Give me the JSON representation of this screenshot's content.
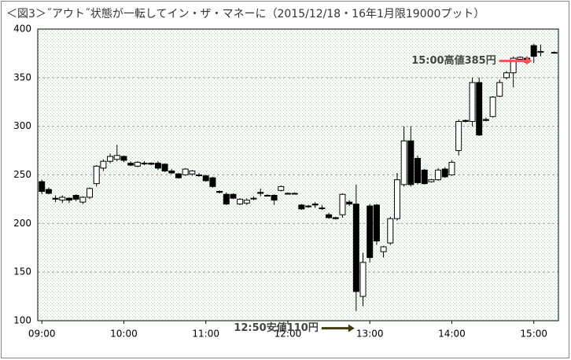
{
  "chart_data": {
    "type": "candlestick",
    "title": "＜図3＞˝アウト˝状態が一転してイン・ザ・マネーに（2015/12/18・16年1月限19000プット）",
    "x": [
      "09:00",
      "09:05",
      "09:10",
      "09:15",
      "09:20",
      "09:25",
      "09:30",
      "09:35",
      "09:40",
      "09:45",
      "09:50",
      "09:55",
      "10:00",
      "10:05",
      "10:10",
      "10:15",
      "10:20",
      "10:25",
      "10:30",
      "10:35",
      "10:40",
      "10:45",
      "10:50",
      "10:55",
      "11:00",
      "11:05",
      "11:10",
      "11:15",
      "11:20",
      "11:25",
      "11:30",
      "11:35",
      "11:40",
      "11:45",
      "11:50",
      "11:55",
      "12:00",
      "12:05",
      "12:10",
      "12:15",
      "12:20",
      "12:25",
      "12:30",
      "12:35",
      "12:40",
      "12:45",
      "12:50",
      "12:55",
      "13:00",
      "13:05",
      "13:10",
      "13:15",
      "13:20",
      "13:25",
      "13:30",
      "13:35",
      "13:40",
      "13:45",
      "13:50",
      "13:55",
      "14:00",
      "14:05",
      "14:10",
      "14:15",
      "14:20",
      "14:25",
      "14:30",
      "14:35",
      "14:40",
      "14:45",
      "14:50",
      "14:55",
      "15:00",
      "15:05",
      "15:15"
    ],
    "open": [
      243,
      235,
      226,
      224,
      226,
      229,
      222,
      227,
      241,
      257,
      264,
      266,
      269,
      262,
      259,
      262,
      262,
      262,
      261,
      254,
      251,
      250,
      251,
      250,
      249,
      247,
      233,
      230,
      230,
      220,
      221,
      226,
      232,
      229,
      229,
      234,
      231,
      231,
      219,
      218,
      220,
      216,
      209,
      206,
      209,
      222,
      220,
      125,
      218,
      219,
      171,
      180,
      205,
      240,
      285,
      267,
      255,
      243,
      245,
      256,
      250,
      275,
      306,
      305,
      345,
      307,
      310,
      331,
      350,
      355,
      369,
      370,
      383,
      376,
      376
    ],
    "high": [
      245,
      237,
      229,
      229,
      227,
      230,
      228,
      237,
      260,
      266,
      272,
      281,
      270,
      264,
      264,
      264,
      263,
      264,
      262,
      256,
      252,
      257,
      255,
      252,
      250,
      248,
      234,
      232,
      231,
      226,
      226,
      228,
      236,
      230,
      230,
      239,
      232,
      232,
      220,
      219,
      222,
      219,
      211,
      207,
      231,
      224,
      240,
      170,
      220,
      220,
      177,
      207,
      252,
      300,
      300,
      270,
      256,
      246,
      257,
      258,
      265,
      307,
      307,
      350,
      350,
      309,
      331,
      348,
      357,
      372,
      372,
      372,
      385,
      384,
      377
    ],
    "low": [
      230,
      230,
      222,
      221,
      221,
      223,
      220,
      225,
      238,
      254,
      262,
      264,
      263,
      259,
      258,
      260,
      260,
      255,
      253,
      251,
      246,
      249,
      249,
      248,
      243,
      237,
      231,
      219,
      225,
      219,
      219,
      224,
      228,
      228,
      219,
      233,
      230,
      230,
      214,
      216,
      216,
      214,
      205,
      204,
      206,
      218,
      110,
      115,
      160,
      178,
      165,
      178,
      203,
      238,
      238,
      240,
      240,
      242,
      244,
      247,
      249,
      270,
      304,
      300,
      290,
      305,
      309,
      330,
      348,
      340,
      368,
      365,
      365,
      372,
      375
    ],
    "close": [
      233,
      231,
      225,
      227,
      224,
      225,
      227,
      236,
      259,
      264,
      269,
      270,
      265,
      260,
      263,
      262,
      261,
      257,
      254,
      252,
      247,
      256,
      254,
      250,
      244,
      238,
      232,
      220,
      226,
      225,
      224,
      226,
      231,
      229,
      224,
      238,
      231,
      231,
      215,
      218,
      219,
      216,
      206,
      205,
      230,
      220,
      130,
      160,
      165,
      182,
      176,
      205,
      245,
      285,
      240,
      242,
      241,
      245,
      255,
      248,
      263,
      305,
      305,
      345,
      291,
      306,
      330,
      345,
      355,
      370,
      371,
      366,
      372,
      377,
      376
    ],
    "xlim": [
      "08:57",
      "15:18"
    ],
    "xticks": [
      "09:00",
      "10:00",
      "11:00",
      "12:00",
      "13:00",
      "14:00",
      "15:00"
    ],
    "ylim": [
      100,
      400
    ],
    "yticks": [
      100,
      150,
      200,
      250,
      300,
      350,
      400
    ],
    "grid": true,
    "up_color": "#ffffff",
    "down_color": "#000000",
    "annotations": [
      {
        "text": "15:00高値385円",
        "x": "15:00",
        "y": 385,
        "color": "#f05a5a"
      },
      {
        "text": "12:50安値110円",
        "x": "12:50",
        "y": 110,
        "color": "#3d3d10"
      }
    ]
  }
}
